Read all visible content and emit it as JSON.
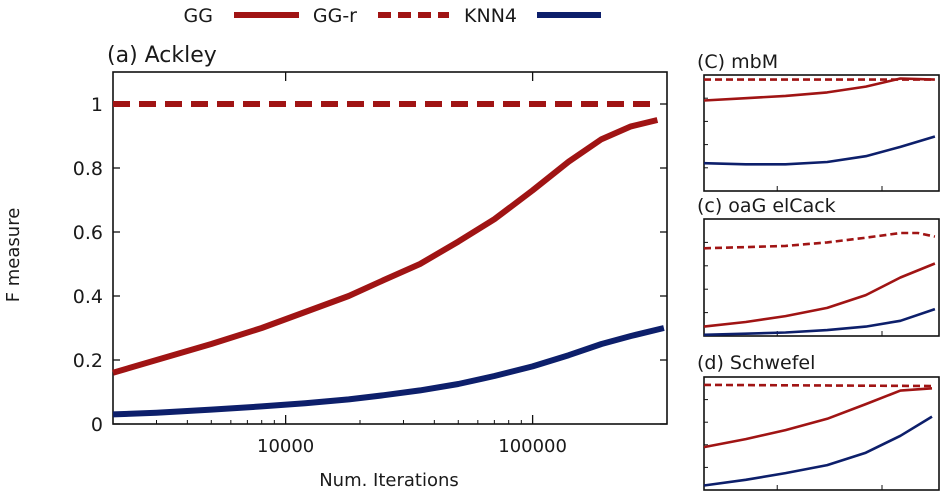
{
  "legend": {
    "items": [
      {
        "label": "GG",
        "color": "#a01414",
        "dash": "solid"
      },
      {
        "label": "GG-r",
        "color": "#a01414",
        "dash": "dashed"
      },
      {
        "label": "KNN4",
        "color": "#0d1f6b",
        "dash": "solid"
      }
    ]
  },
  "chart_data": [
    {
      "type": "line",
      "title": "(a) Ackley",
      "xlabel": "Num. Iterations",
      "ylabel": "F measure",
      "xscale": "log",
      "xlim": [
        2000,
        350000
      ],
      "ylim": [
        0,
        1.1
      ],
      "xticks": [
        10000,
        100000
      ],
      "xtick_labels": [
        "10000",
        "100000"
      ],
      "yticks": [
        0,
        0.2,
        0.4,
        0.6,
        0.8,
        1
      ],
      "ytick_labels": [
        "0",
        "0.2",
        "0.4",
        "0.6",
        "0.8",
        "1"
      ],
      "series": [
        {
          "name": "GG",
          "color": "#a01414",
          "dash": "solid",
          "x": [
            2000,
            3000,
            5000,
            8000,
            12000,
            18000,
            25000,
            35000,
            50000,
            70000,
            100000,
            140000,
            190000,
            250000,
            320000
          ],
          "y": [
            0.16,
            0.2,
            0.25,
            0.3,
            0.35,
            0.4,
            0.45,
            0.5,
            0.57,
            0.64,
            0.73,
            0.82,
            0.89,
            0.93,
            0.95
          ]
        },
        {
          "name": "GG-r",
          "color": "#a01414",
          "dash": "dashed",
          "x": [
            2000,
            320000
          ],
          "y": [
            1.0,
            1.0
          ]
        },
        {
          "name": "KNN4",
          "color": "#0d1f6b",
          "dash": "solid",
          "x": [
            2000,
            3000,
            5000,
            8000,
            12000,
            18000,
            25000,
            35000,
            50000,
            70000,
            100000,
            140000,
            190000,
            250000,
            340000
          ],
          "y": [
            0.03,
            0.035,
            0.045,
            0.055,
            0.065,
            0.077,
            0.09,
            0.105,
            0.125,
            0.15,
            0.18,
            0.215,
            0.25,
            0.275,
            0.3
          ]
        }
      ]
    },
    {
      "type": "line",
      "title": "(C) mbM",
      "xscale": "log",
      "xlim": [
        2000,
        350000
      ],
      "ylim": [
        0,
        1
      ],
      "series": [
        {
          "name": "GG",
          "color": "#a01414",
          "dash": "solid",
          "x": [
            2000,
            5000,
            12000,
            30000,
            70000,
            150000,
            320000
          ],
          "y": [
            0.78,
            0.8,
            0.82,
            0.85,
            0.9,
            0.97,
            0.96
          ]
        },
        {
          "name": "GG-r",
          "color": "#a01414",
          "dash": "dashed",
          "x": [
            2000,
            320000
          ],
          "y": [
            0.96,
            0.96
          ]
        },
        {
          "name": "KNN4",
          "color": "#0d1f6b",
          "dash": "solid",
          "x": [
            2000,
            5000,
            12000,
            30000,
            70000,
            150000,
            320000
          ],
          "y": [
            0.24,
            0.23,
            0.23,
            0.25,
            0.3,
            0.38,
            0.47
          ]
        }
      ]
    },
    {
      "type": "line",
      "title": "(c) oaG elCack",
      "xscale": "log",
      "xlim": [
        2000,
        350000
      ],
      "ylim": [
        0,
        1
      ],
      "series": [
        {
          "name": "GG",
          "color": "#a01414",
          "dash": "solid",
          "x": [
            2000,
            5000,
            12000,
            30000,
            70000,
            150000,
            320000
          ],
          "y": [
            0.08,
            0.12,
            0.17,
            0.24,
            0.35,
            0.5,
            0.62
          ]
        },
        {
          "name": "GG-r",
          "color": "#a01414",
          "dash": "dashed",
          "x": [
            2000,
            5000,
            12000,
            30000,
            70000,
            150000,
            220000,
            320000
          ],
          "y": [
            0.75,
            0.76,
            0.77,
            0.8,
            0.84,
            0.88,
            0.88,
            0.85
          ]
        },
        {
          "name": "KNN4",
          "color": "#0d1f6b",
          "dash": "solid",
          "x": [
            2000,
            5000,
            12000,
            30000,
            70000,
            150000,
            320000
          ],
          "y": [
            0.01,
            0.02,
            0.03,
            0.05,
            0.08,
            0.13,
            0.23
          ]
        }
      ]
    },
    {
      "type": "line",
      "title": "(d) Schwefel",
      "xscale": "log",
      "xlim": [
        2000,
        350000
      ],
      "ylim": [
        0,
        1
      ],
      "series": [
        {
          "name": "GG",
          "color": "#a01414",
          "dash": "solid",
          "x": [
            2000,
            5000,
            12000,
            30000,
            70000,
            150000,
            300000
          ],
          "y": [
            0.38,
            0.45,
            0.53,
            0.63,
            0.76,
            0.88,
            0.9
          ]
        },
        {
          "name": "GG-r",
          "color": "#a01414",
          "dash": "dashed",
          "x": [
            2000,
            300000
          ],
          "y": [
            0.93,
            0.92
          ]
        },
        {
          "name": "KNN4",
          "color": "#0d1f6b",
          "dash": "solid",
          "x": [
            2000,
            5000,
            12000,
            30000,
            70000,
            150000,
            300000
          ],
          "y": [
            0.04,
            0.09,
            0.15,
            0.22,
            0.33,
            0.48,
            0.65
          ]
        }
      ]
    }
  ]
}
